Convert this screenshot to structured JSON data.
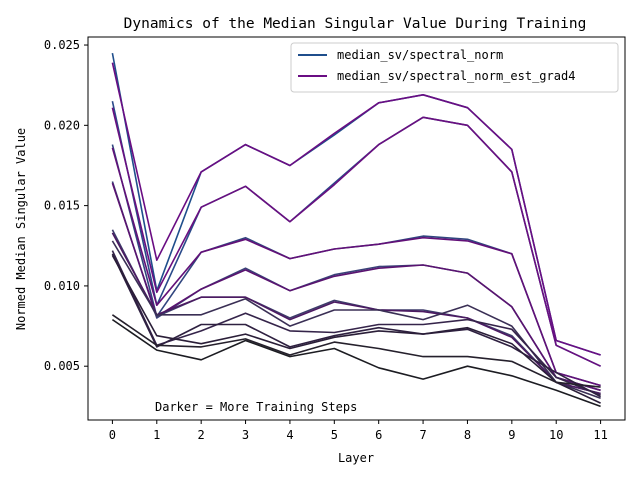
{
  "chart_data": {
    "type": "line",
    "title": "Dynamics of the Median Singular Value During Training",
    "xlabel": "Layer",
    "ylabel": "Normed Median Singular Value",
    "x": [
      0,
      1,
      2,
      3,
      4,
      5,
      6,
      7,
      8,
      9,
      10,
      11
    ],
    "x_ticks": [
      "0",
      "1",
      "2",
      "3",
      "4",
      "5",
      "6",
      "7",
      "8",
      "9",
      "10",
      "11"
    ],
    "y_ticks": [
      "0.005",
      "0.010",
      "0.015",
      "0.020",
      "0.025"
    ],
    "xlim": [
      -0.55,
      11.55
    ],
    "ylim": [
      0.00165,
      0.0255
    ],
    "grid": false,
    "legend_position": "top-right",
    "legend": [
      {
        "label": "median_sv/spectral_norm",
        "color": "#1f4e8c"
      },
      {
        "label": "median_sv/spectral_norm_est_grad4",
        "color": "#6a0d83"
      }
    ],
    "annotation": "Darker = More Training Steps",
    "series": [
      {
        "color": "#1f4e8c",
        "values": [
          0.0245,
          0.0097,
          0.0171,
          0.0188,
          0.0175,
          0.0194,
          0.0214,
          0.0219,
          0.0211,
          0.0185,
          0.0066,
          0.0057
        ]
      },
      {
        "color": "#6a0d83",
        "values": [
          0.0239,
          0.0116,
          0.0171,
          0.0188,
          0.0175,
          0.0195,
          0.0214,
          0.0219,
          0.0211,
          0.0185,
          0.0066,
          0.0057
        ]
      },
      {
        "color": "#2a4a8a",
        "values": [
          0.0215,
          0.0088,
          0.0149,
          0.0162,
          0.014,
          0.0164,
          0.0188,
          0.0205,
          0.02,
          0.0171,
          0.0063,
          0.005
        ]
      },
      {
        "color": "#6a0f80",
        "values": [
          0.0211,
          0.0096,
          0.0149,
          0.0162,
          0.014,
          0.0163,
          0.0188,
          0.0205,
          0.02,
          0.0171,
          0.0063,
          0.005
        ]
      },
      {
        "color": "#31467f",
        "values": [
          0.0188,
          0.0081,
          0.0121,
          0.013,
          0.0117,
          0.0123,
          0.0126,
          0.0131,
          0.0129,
          0.012,
          0.0046,
          0.0038
        ]
      },
      {
        "color": "#621078",
        "values": [
          0.0186,
          0.0088,
          0.0121,
          0.0129,
          0.0117,
          0.0123,
          0.0126,
          0.013,
          0.0128,
          0.012,
          0.0046,
          0.0038
        ]
      },
      {
        "color": "#3a4278",
        "values": [
          0.0165,
          0.008,
          0.0098,
          0.0111,
          0.0097,
          0.0107,
          0.0112,
          0.0113,
          0.0108,
          0.0087,
          0.0043,
          0.0035
        ]
      },
      {
        "color": "#5a1370",
        "values": [
          0.0164,
          0.0081,
          0.0098,
          0.011,
          0.0097,
          0.0106,
          0.0111,
          0.0113,
          0.0108,
          0.0087,
          0.0043,
          0.0035
        ]
      },
      {
        "color": "#3d3c6a",
        "values": [
          0.0135,
          0.0081,
          0.0093,
          0.0093,
          0.008,
          0.0091,
          0.0085,
          0.0085,
          0.008,
          0.0069,
          0.004,
          0.0033
        ]
      },
      {
        "color": "#4c1a62",
        "values": [
          0.0133,
          0.0082,
          0.0093,
          0.0093,
          0.0079,
          0.009,
          0.0085,
          0.0084,
          0.008,
          0.0068,
          0.004,
          0.0033
        ]
      },
      {
        "color": "#3a2f55",
        "values": [
          0.0128,
          0.0082,
          0.0082,
          0.0092,
          0.0075,
          0.0085,
          0.0085,
          0.0079,
          0.0088,
          0.0075,
          0.004,
          0.003
        ]
      },
      {
        "color": "#35244a",
        "values": [
          0.0122,
          0.0063,
          0.0072,
          0.0083,
          0.0072,
          0.0071,
          0.0076,
          0.0076,
          0.0079,
          0.0073,
          0.0043,
          0.0032
        ]
      },
      {
        "color": "#2e2040",
        "values": [
          0.012,
          0.0062,
          0.0076,
          0.0076,
          0.0062,
          0.0069,
          0.0074,
          0.007,
          0.0073,
          0.0062,
          0.0046,
          0.0031
        ]
      },
      {
        "color": "#2a1e38",
        "values": [
          0.0119,
          0.0069,
          0.0064,
          0.007,
          0.0061,
          0.0068,
          0.0072,
          0.007,
          0.0074,
          0.0064,
          0.004,
          0.0027
        ]
      },
      {
        "color": "#25202c",
        "values": [
          0.0082,
          0.0063,
          0.0062,
          0.0067,
          0.0057,
          0.0065,
          0.0061,
          0.0056,
          0.0056,
          0.0053,
          0.004,
          0.0037
        ]
      },
      {
        "color": "#1c1c22",
        "values": [
          0.0079,
          0.006,
          0.0054,
          0.0066,
          0.0056,
          0.0061,
          0.0049,
          0.0042,
          0.005,
          0.0044,
          0.0035,
          0.0025
        ]
      }
    ]
  }
}
